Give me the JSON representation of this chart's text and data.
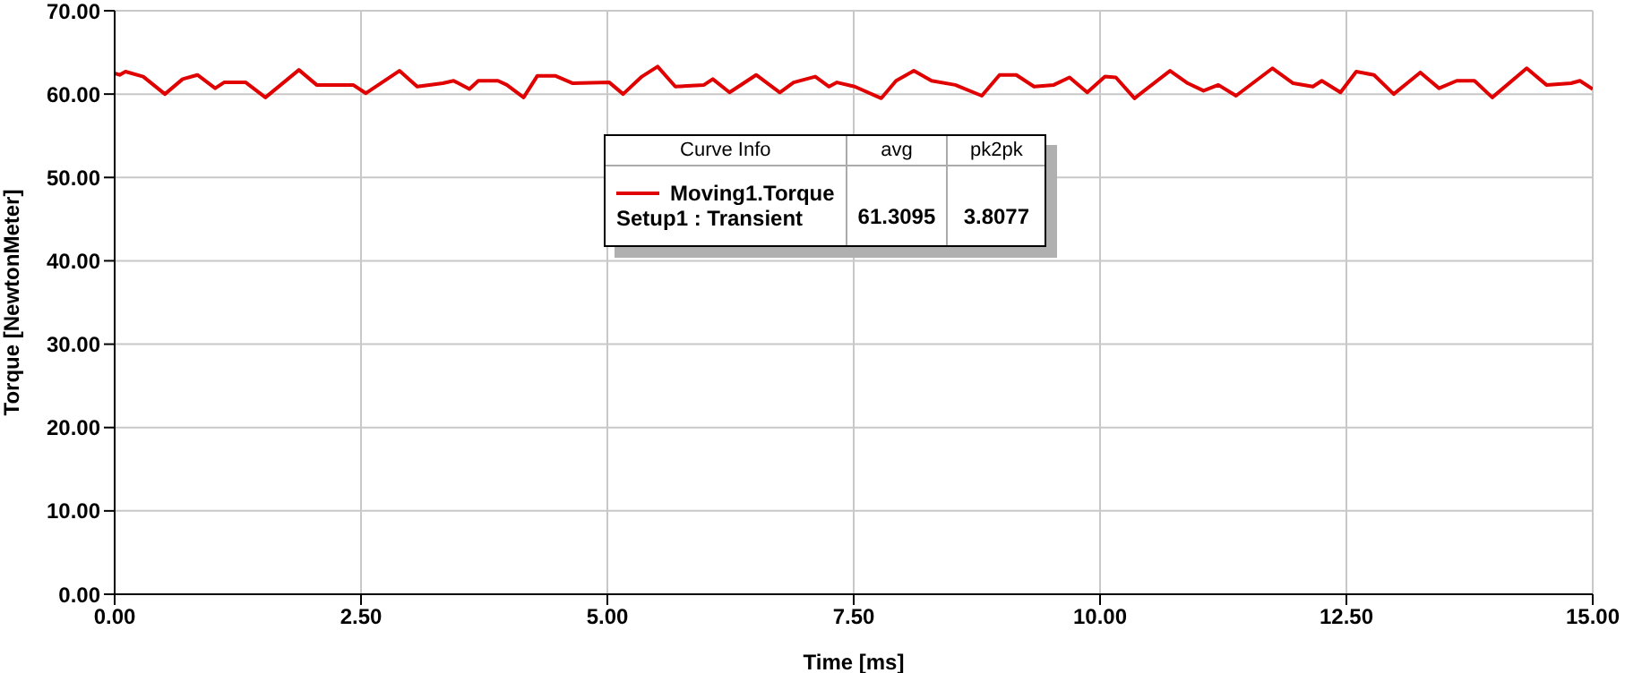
{
  "chart_data": {
    "type": "line",
    "xlabel": "Time [ms]",
    "ylabel": "Torque [NewtonMeter]",
    "legend_title": "Curve Info",
    "annotations": [
      "avg",
      "pk2pk",
      "Setup1 : Transient",
      "61.3095",
      "3.8077"
    ],
    "xlim": [
      0,
      15
    ],
    "ylim": [
      0,
      70
    ],
    "xticks": [
      {
        "value": 0,
        "label": "0.00"
      },
      {
        "value": 2.5,
        "label": "2.50"
      },
      {
        "value": 5,
        "label": "5.00"
      },
      {
        "value": 7.5,
        "label": "7.50"
      },
      {
        "value": 10,
        "label": "10.00"
      },
      {
        "value": 12.5,
        "label": "12.50"
      },
      {
        "value": 15,
        "label": "15.00"
      }
    ],
    "yticks": [
      {
        "value": 0,
        "label": "0.00"
      },
      {
        "value": 10,
        "label": "10.00"
      },
      {
        "value": 20,
        "label": "20.00"
      },
      {
        "value": 30,
        "label": "30.00"
      },
      {
        "value": 40,
        "label": "40.00"
      },
      {
        "value": 50,
        "label": "50.00"
      },
      {
        "value": 60,
        "label": "60.00"
      },
      {
        "value": 70,
        "label": "70.00"
      }
    ],
    "grid": true,
    "legend": "top",
    "marker": "none",
    "line_style": "solid",
    "series": [
      {
        "name": "Moving1.Torque",
        "color": "#e00000",
        "x": [
          0,
          0.05,
          0.11,
          0.29,
          0.51,
          0.69,
          0.84,
          1.02,
          1.11,
          1.33,
          1.53,
          1.87,
          2.05,
          2.42,
          2.55,
          2.89,
          3.07,
          3.33,
          3.44,
          3.6,
          3.69,
          3.89,
          3.98,
          4.15,
          4.29,
          4.47,
          4.65,
          5.02,
          5.16,
          5.35,
          5.51,
          5.69,
          5.98,
          6.07,
          6.24,
          6.51,
          6.75,
          6.89,
          7.11,
          7.25,
          7.33,
          7.51,
          7.78,
          7.93,
          8.11,
          8.29,
          8.53,
          8.8,
          8.98,
          9.15,
          9.33,
          9.53,
          9.69,
          9.87,
          10.05,
          10.16,
          10.35,
          10.71,
          10.89,
          11.05,
          11.2,
          11.38,
          11.75,
          11.96,
          12.16,
          12.25,
          12.44,
          12.6,
          12.78,
          12.98,
          13.25,
          13.44,
          13.62,
          13.8,
          13.98,
          14.33,
          14.53,
          14.78,
          14.87,
          15
        ],
        "values": [
          62.5,
          62.3,
          62.7,
          62.1,
          60.0,
          61.8,
          62.3,
          60.7,
          61.4,
          61.4,
          59.6,
          62.9,
          61.1,
          61.1,
          60.1,
          62.8,
          60.9,
          61.3,
          61.6,
          60.6,
          61.6,
          61.6,
          61.1,
          59.6,
          62.2,
          62.2,
          61.3,
          61.4,
          60.0,
          62.1,
          63.3,
          60.9,
          61.1,
          61.8,
          60.2,
          62.3,
          60.2,
          61.4,
          62.1,
          60.9,
          61.4,
          60.9,
          59.5,
          61.6,
          62.8,
          61.6,
          61.1,
          59.8,
          62.3,
          62.3,
          60.9,
          61.1,
          62.0,
          60.2,
          62.1,
          62.0,
          59.5,
          62.8,
          61.3,
          60.4,
          61.1,
          59.8,
          63.1,
          61.3,
          60.9,
          61.6,
          60.2,
          62.7,
          62.3,
          60.0,
          62.6,
          60.7,
          61.6,
          61.6,
          59.6,
          63.1,
          61.1,
          61.3,
          61.6,
          60.6
        ]
      }
    ]
  }
}
